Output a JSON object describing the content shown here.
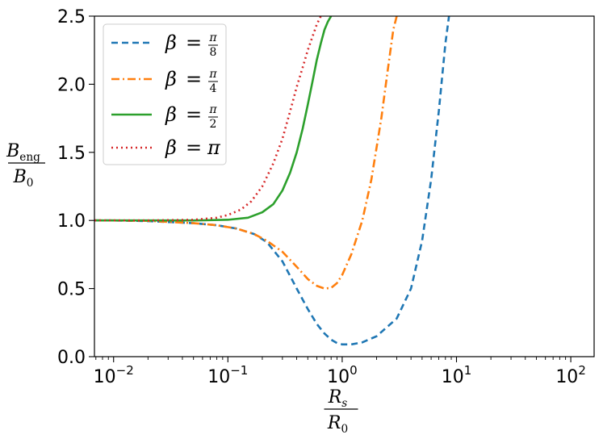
{
  "chart_data": {
    "type": "line",
    "xscale": "log",
    "xlim": [
      0.0068,
      160
    ],
    "ylim": [
      0,
      2.5
    ],
    "grid": false,
    "legend_position": "top-left",
    "xlabel": {
      "num": "R",
      "num_sub": "s",
      "den": "R",
      "den_sub": "0"
    },
    "ylabel": {
      "num": "B",
      "num_sub": "eng",
      "den": "B",
      "den_sub": "0"
    },
    "x_ticks": [
      {
        "value": 0.01,
        "base": "10",
        "exp": "−2"
      },
      {
        "value": 0.1,
        "base": "10",
        "exp": "−1"
      },
      {
        "value": 1,
        "base": "10",
        "exp": "0"
      },
      {
        "value": 10,
        "base": "10",
        "exp": "1"
      },
      {
        "value": 100,
        "base": "10",
        "exp": "2"
      }
    ],
    "y_ticks": [
      {
        "value": 0.0,
        "label": "0.0"
      },
      {
        "value": 0.5,
        "label": "0.5"
      },
      {
        "value": 1.0,
        "label": "1.0"
      },
      {
        "value": 1.5,
        "label": "1.5"
      },
      {
        "value": 2.0,
        "label": "2.0"
      },
      {
        "value": 2.5,
        "label": "2.5"
      }
    ],
    "series": [
      {
        "name": "β = π/8",
        "legend": {
          "lhs": "β",
          "eq": "=",
          "num": "π",
          "den": "8"
        },
        "color": "#1f77b4",
        "dash": "8,5",
        "x": [
          0.0068,
          0.01,
          0.02,
          0.05,
          0.08,
          0.12,
          0.17,
          0.22,
          0.3,
          0.4,
          0.5,
          0.6,
          0.7,
          0.8,
          0.9,
          1.0,
          1.2,
          1.5,
          2.0,
          3.0,
          4.0,
          5.0,
          6.0,
          7.0,
          8.0,
          8.6
        ],
        "y": [
          1.0,
          1.0,
          0.995,
          0.98,
          0.965,
          0.94,
          0.9,
          0.84,
          0.7,
          0.5,
          0.35,
          0.24,
          0.17,
          0.125,
          0.1,
          0.09,
          0.09,
          0.105,
          0.15,
          0.28,
          0.5,
          0.85,
          1.3,
          1.8,
          2.3,
          2.5
        ]
      },
      {
        "name": "β = π/4",
        "legend": {
          "lhs": "β",
          "eq": "=",
          "num": "π",
          "den": "4"
        },
        "color": "#ff7f0e",
        "dash": "10,4,2,4",
        "x": [
          0.0068,
          0.01,
          0.02,
          0.05,
          0.08,
          0.12,
          0.17,
          0.22,
          0.3,
          0.4,
          0.5,
          0.6,
          0.7,
          0.8,
          0.9,
          1.0,
          1.2,
          1.5,
          1.8,
          2.2,
          2.5,
          2.8,
          3.0
        ],
        "y": [
          1.0,
          1.0,
          0.997,
          0.98,
          0.965,
          0.94,
          0.9,
          0.85,
          0.77,
          0.66,
          0.57,
          0.52,
          0.5,
          0.505,
          0.54,
          0.6,
          0.75,
          1.0,
          1.3,
          1.75,
          2.1,
          2.4,
          2.5
        ]
      },
      {
        "name": "β = π/2",
        "legend": {
          "lhs": "β",
          "eq": "=",
          "num": "π",
          "den": "2"
        },
        "color": "#2ca02c",
        "dash": "",
        "x": [
          0.0068,
          0.01,
          0.02,
          0.05,
          0.1,
          0.15,
          0.2,
          0.25,
          0.3,
          0.35,
          0.4,
          0.45,
          0.5,
          0.55,
          0.6,
          0.65,
          0.7,
          0.75,
          0.8
        ],
        "y": [
          1.0,
          1.0,
          1.0,
          1.0,
          1.005,
          1.02,
          1.06,
          1.12,
          1.22,
          1.35,
          1.5,
          1.67,
          1.85,
          2.02,
          2.18,
          2.3,
          2.4,
          2.46,
          2.5
        ]
      },
      {
        "name": "β = π",
        "legend": {
          "lhs": "β",
          "eq": "=",
          "num": "π",
          "den": ""
        },
        "color": "#d62728",
        "dash": "2,4",
        "x": [
          0.0068,
          0.01,
          0.02,
          0.05,
          0.08,
          0.1,
          0.13,
          0.16,
          0.2,
          0.25,
          0.3,
          0.35,
          0.4,
          0.45,
          0.5,
          0.55,
          0.6,
          0.65
        ],
        "y": [
          1.0,
          1.0,
          1.0,
          1.005,
          1.02,
          1.04,
          1.08,
          1.14,
          1.25,
          1.42,
          1.6,
          1.8,
          1.98,
          2.12,
          2.25,
          2.35,
          2.44,
          2.5
        ]
      }
    ]
  }
}
